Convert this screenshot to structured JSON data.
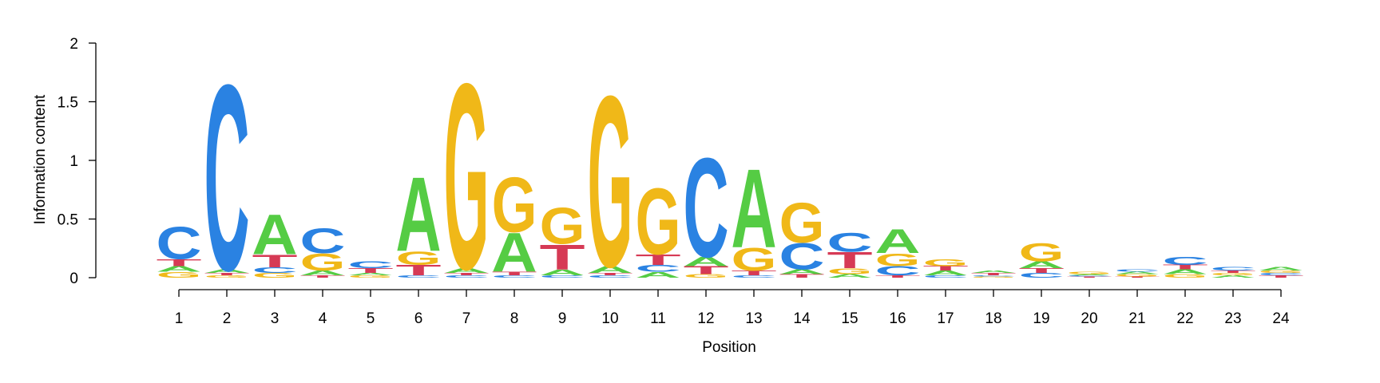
{
  "chart_data": {
    "type": "sequence-logo",
    "xlabel": "Position",
    "ylabel": "Information content",
    "ylim": [
      0,
      2
    ],
    "y_ticks": [
      "0",
      "0.5",
      "1",
      "1.5",
      "2"
    ],
    "y_tick_values": [
      0,
      0.5,
      1,
      1.5,
      2
    ],
    "colors": {
      "A": "#55cc44",
      "C": "#2a82e2",
      "G": "#f0b818",
      "T": "#d63a55"
    },
    "positions": [
      {
        "label": "1",
        "stack": [
          [
            "G",
            0.05
          ],
          [
            "A",
            0.05
          ],
          [
            "T",
            0.06
          ],
          [
            "C",
            0.28
          ]
        ]
      },
      {
        "label": "2",
        "stack": [
          [
            "G",
            0.02
          ],
          [
            "T",
            0.02
          ],
          [
            "A",
            0.03
          ],
          [
            "C",
            1.63
          ]
        ]
      },
      {
        "label": "3",
        "stack": [
          [
            "G",
            0.04
          ],
          [
            "C",
            0.05
          ],
          [
            "T",
            0.11
          ],
          [
            "A",
            0.35
          ]
        ]
      },
      {
        "label": "4",
        "stack": [
          [
            "T",
            0.02
          ],
          [
            "A",
            0.04
          ],
          [
            "G",
            0.15
          ],
          [
            "C",
            0.22
          ]
        ]
      },
      {
        "label": "5",
        "stack": [
          [
            "G",
            0.02
          ],
          [
            "A",
            0.02
          ],
          [
            "T",
            0.04
          ],
          [
            "C",
            0.06
          ]
        ]
      },
      {
        "label": "6",
        "stack": [
          [
            "C",
            0.02
          ],
          [
            "T",
            0.09
          ],
          [
            "G",
            0.12
          ],
          [
            "A",
            0.65
          ]
        ]
      },
      {
        "label": "7",
        "stack": [
          [
            "C",
            0.02
          ],
          [
            "T",
            0.02
          ],
          [
            "A",
            0.04
          ],
          [
            "G",
            1.63
          ]
        ]
      },
      {
        "label": "8",
        "stack": [
          [
            "C",
            0.02
          ],
          [
            "T",
            0.03
          ],
          [
            "A",
            0.34
          ],
          [
            "G",
            0.48
          ]
        ]
      },
      {
        "label": "9",
        "stack": [
          [
            "C",
            0.02
          ],
          [
            "A",
            0.05
          ],
          [
            "T",
            0.22
          ],
          [
            "G",
            0.32
          ]
        ]
      },
      {
        "label": "10",
        "stack": [
          [
            "C",
            0.02
          ],
          [
            "T",
            0.02
          ],
          [
            "A",
            0.06
          ],
          [
            "G",
            1.5
          ]
        ]
      },
      {
        "label": "11",
        "stack": [
          [
            "A",
            0.05
          ],
          [
            "C",
            0.06
          ],
          [
            "T",
            0.09
          ],
          [
            "G",
            0.58
          ]
        ]
      },
      {
        "label": "12",
        "stack": [
          [
            "G",
            0.03
          ],
          [
            "T",
            0.07
          ],
          [
            "A",
            0.08
          ],
          [
            "C",
            0.87
          ]
        ]
      },
      {
        "label": "13",
        "stack": [
          [
            "C",
            0.02
          ],
          [
            "T",
            0.04
          ],
          [
            "G",
            0.2
          ],
          [
            "A",
            0.69
          ]
        ]
      },
      {
        "label": "14",
        "stack": [
          [
            "T",
            0.03
          ],
          [
            "A",
            0.04
          ],
          [
            "C",
            0.23
          ],
          [
            "G",
            0.35
          ]
        ]
      },
      {
        "label": "15",
        "stack": [
          [
            "A",
            0.03
          ],
          [
            "G",
            0.05
          ],
          [
            "T",
            0.14
          ],
          [
            "C",
            0.17
          ]
        ]
      },
      {
        "label": "16",
        "stack": [
          [
            "T",
            0.02
          ],
          [
            "C",
            0.08
          ],
          [
            "G",
            0.11
          ],
          [
            "A",
            0.21
          ]
        ]
      },
      {
        "label": "17",
        "stack": [
          [
            "C",
            0.02
          ],
          [
            "A",
            0.04
          ],
          [
            "T",
            0.04
          ],
          [
            "G",
            0.06
          ]
        ]
      },
      {
        "label": "18",
        "stack": [
          [
            "G",
            0.01
          ],
          [
            "C",
            0.01
          ],
          [
            "T",
            0.02
          ],
          [
            "A",
            0.02
          ]
        ]
      },
      {
        "label": "19",
        "stack": [
          [
            "C",
            0.04
          ],
          [
            "T",
            0.04
          ],
          [
            "A",
            0.06
          ],
          [
            "G",
            0.16
          ]
        ]
      },
      {
        "label": "20",
        "stack": [
          [
            "T",
            0.01
          ],
          [
            "C",
            0.01
          ],
          [
            "A",
            0.01
          ],
          [
            "G",
            0.02
          ]
        ]
      },
      {
        "label": "21",
        "stack": [
          [
            "T",
            0.01
          ],
          [
            "G",
            0.02
          ],
          [
            "A",
            0.02
          ],
          [
            "C",
            0.02
          ]
        ]
      },
      {
        "label": "22",
        "stack": [
          [
            "G",
            0.03
          ],
          [
            "A",
            0.04
          ],
          [
            "T",
            0.04
          ],
          [
            "C",
            0.07
          ]
        ]
      },
      {
        "label": "23",
        "stack": [
          [
            "A",
            0.02
          ],
          [
            "G",
            0.02
          ],
          [
            "T",
            0.02
          ],
          [
            "C",
            0.03
          ]
        ]
      },
      {
        "label": "24",
        "stack": [
          [
            "T",
            0.02
          ],
          [
            "C",
            0.02
          ],
          [
            "G",
            0.02
          ],
          [
            "A",
            0.03
          ]
        ]
      }
    ]
  }
}
